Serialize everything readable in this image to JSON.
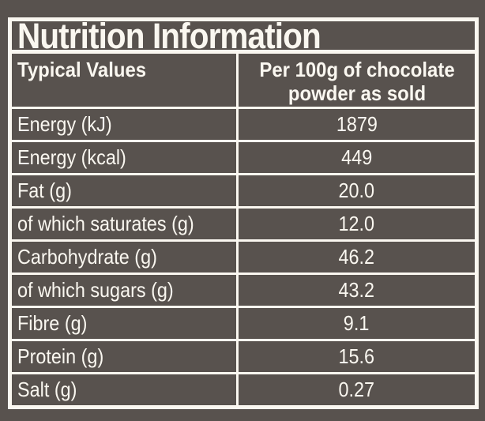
{
  "colors": {
    "background": "#58524E",
    "foreground": "#FAF7F0"
  },
  "title": "Nutrition Information",
  "table": {
    "columns": {
      "col1": "Typical Values",
      "col2": "Per 100g of chocolate powder as sold"
    },
    "rows": [
      {
        "label": "Energy (kJ)",
        "value": "1879"
      },
      {
        "label": "Energy (kcal)",
        "value": "449"
      },
      {
        "label": "Fat (g)",
        "value": "20.0"
      },
      {
        "label": "of which saturates (g)",
        "value": "12.0"
      },
      {
        "label": "Carbohydrate (g)",
        "value": "46.2"
      },
      {
        "label": "of which sugars (g)",
        "value": "43.2"
      },
      {
        "label": "Fibre (g)",
        "value": "9.1"
      },
      {
        "label": "Protein (g)",
        "value": "15.6"
      },
      {
        "label": "Salt (g)",
        "value": "0.27"
      }
    ]
  }
}
